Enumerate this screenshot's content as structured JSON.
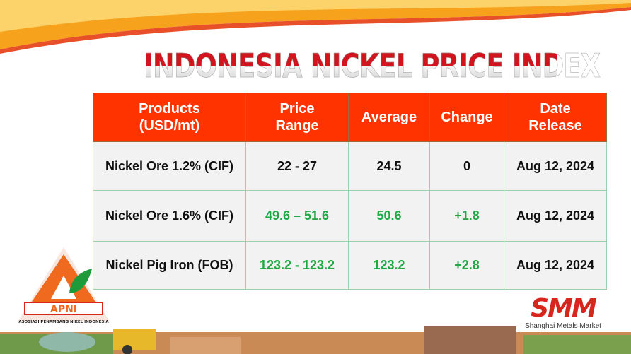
{
  "title": "INDONESIA NICKEL PRICE INDEX",
  "table": {
    "headers": [
      [
        "Products",
        "(USD/mt)"
      ],
      [
        "Price",
        "Range"
      ],
      [
        "Average",
        ""
      ],
      [
        "Change",
        ""
      ],
      [
        "Date",
        "Release"
      ]
    ],
    "rows": [
      {
        "product": "Nickel Ore 1.2% (CIF)",
        "range": "22 - 27",
        "average": "24.5",
        "change": "0",
        "date": "Aug 12, 2024",
        "highlight": false
      },
      {
        "product": "Nickel Ore 1.6% (CIF)",
        "range": "49.6 – 51.6",
        "average": "50.6",
        "change": "+1.8",
        "date": "Aug 12, 2024",
        "highlight": true
      },
      {
        "product": "Nickel Pig Iron (FOB)",
        "range": "123.2 - 123.2",
        "average": "123.2",
        "change": "+2.8",
        "date": "Aug 12, 2024",
        "highlight": true
      }
    ]
  },
  "logos": {
    "apni_text": "APNI",
    "apni_sub": "ASOSIASI PENAMBANG NIKEL INDONESIA",
    "smm": "SMM",
    "smm_sub": "Shanghai Metals Market"
  },
  "colors": {
    "header": "#ff3300",
    "up": "#22a845",
    "title_red": "#d2141e"
  }
}
